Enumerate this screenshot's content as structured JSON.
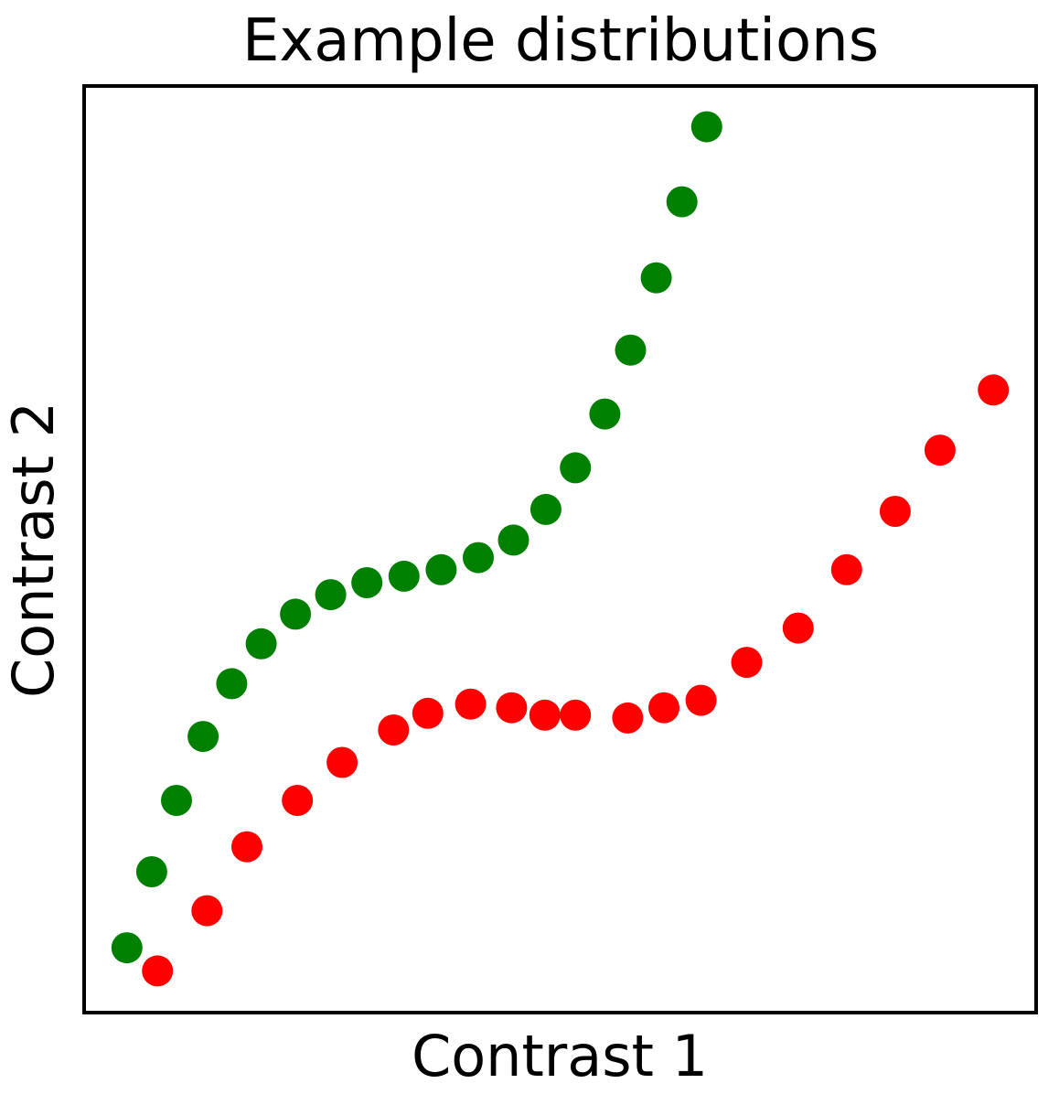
{
  "chart_data": {
    "type": "scatter",
    "title": "Example distributions",
    "xlabel": "Contrast 1",
    "ylabel": "Contrast 2",
    "xlim": [
      0,
      1
    ],
    "ylim": [
      0,
      1
    ],
    "xticks": false,
    "yticks": false,
    "grid": false,
    "legend": "none",
    "series": [
      {
        "color": "#008000",
        "points": [
          [
            0.045,
            0.07
          ],
          [
            0.071,
            0.152
          ],
          [
            0.097,
            0.229
          ],
          [
            0.125,
            0.298
          ],
          [
            0.155,
            0.355
          ],
          [
            0.186,
            0.398
          ],
          [
            0.222,
            0.43
          ],
          [
            0.259,
            0.451
          ],
          [
            0.297,
            0.464
          ],
          [
            0.336,
            0.471
          ],
          [
            0.375,
            0.478
          ],
          [
            0.414,
            0.491
          ],
          [
            0.451,
            0.51
          ],
          [
            0.485,
            0.543
          ],
          [
            0.516,
            0.588
          ],
          [
            0.547,
            0.646
          ],
          [
            0.574,
            0.715
          ],
          [
            0.601,
            0.793
          ],
          [
            0.628,
            0.875
          ],
          [
            0.654,
            0.956
          ]
        ]
      },
      {
        "color": "#ff0000",
        "points": [
          [
            0.077,
            0.045
          ],
          [
            0.129,
            0.11
          ],
          [
            0.171,
            0.179
          ],
          [
            0.224,
            0.229
          ],
          [
            0.271,
            0.27
          ],
          [
            0.325,
            0.305
          ],
          [
            0.361,
            0.323
          ],
          [
            0.406,
            0.333
          ],
          [
            0.449,
            0.329
          ],
          [
            0.484,
            0.321
          ],
          [
            0.516,
            0.321
          ],
          [
            0.571,
            0.318
          ],
          [
            0.609,
            0.329
          ],
          [
            0.648,
            0.337
          ],
          [
            0.696,
            0.378
          ],
          [
            0.75,
            0.415
          ],
          [
            0.801,
            0.478
          ],
          [
            0.852,
            0.541
          ],
          [
            0.899,
            0.607
          ],
          [
            0.955,
            0.672
          ]
        ]
      }
    ]
  }
}
